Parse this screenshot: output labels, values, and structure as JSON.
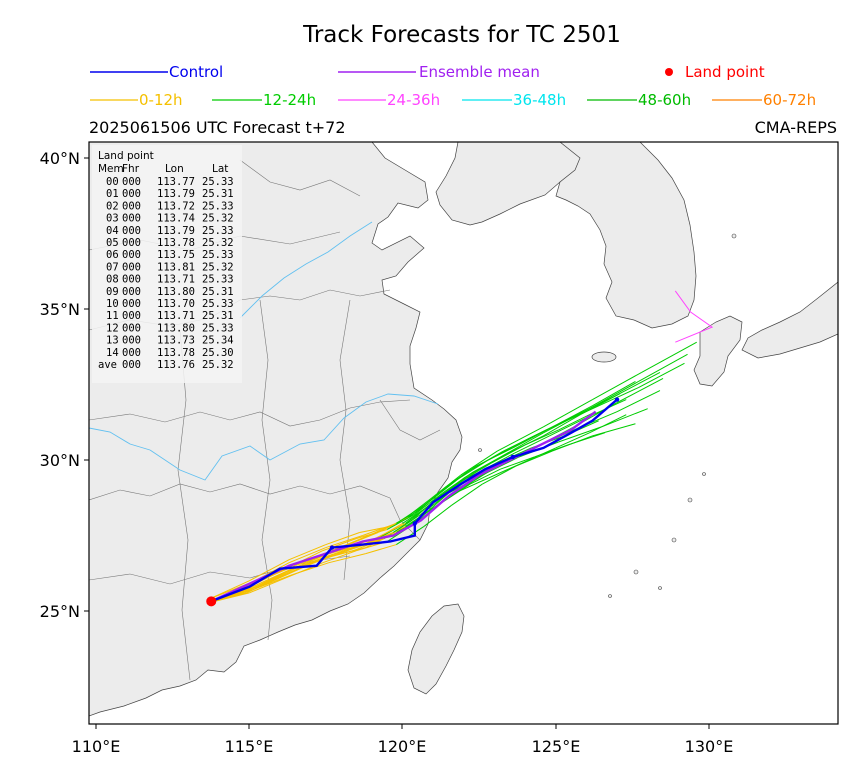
{
  "title": "Track Forecasts for TC 2501",
  "subtitle_left": "2025061506 UTC Forecast t+72",
  "subtitle_right": "CMA-REPS",
  "legend_row1": [
    {
      "label": "Control",
      "color": "#0000ee",
      "kind": "line"
    },
    {
      "label": "Ensemble mean",
      "color": "#a020f0",
      "kind": "line"
    },
    {
      "label": "Land point",
      "color": "#ff0000",
      "kind": "dot"
    }
  ],
  "legend_row2": [
    {
      "label": "0-12h",
      "color": "#f5c000"
    },
    {
      "label": "12-24h",
      "color": "#00cc00"
    },
    {
      "label": "24-36h",
      "color": "#ff44ff"
    },
    {
      "label": "36-48h",
      "color": "#00e5ee"
    },
    {
      "label": "48-60h",
      "color": "#00bb00"
    },
    {
      "label": "60-72h",
      "color": "#ff8000"
    }
  ],
  "x_ticks": [
    "110°E",
    "115°E",
    "120°E",
    "125°E",
    "130°E"
  ],
  "y_ticks": [
    "40°N",
    "35°N",
    "30°N",
    "25°N"
  ],
  "land_table": {
    "title": "Land point",
    "headers": [
      "Mem",
      "Fhr",
      "Lon",
      "Lat"
    ],
    "rows": [
      [
        "00",
        "000",
        "113.77",
        "25.33"
      ],
      [
        "01",
        "000",
        "113.79",
        "25.31"
      ],
      [
        "02",
        "000",
        "113.72",
        "25.33"
      ],
      [
        "03",
        "000",
        "113.74",
        "25.32"
      ],
      [
        "04",
        "000",
        "113.79",
        "25.33"
      ],
      [
        "05",
        "000",
        "113.78",
        "25.32"
      ],
      [
        "06",
        "000",
        "113.75",
        "25.33"
      ],
      [
        "07",
        "000",
        "113.81",
        "25.32"
      ],
      [
        "08",
        "000",
        "113.71",
        "25.33"
      ],
      [
        "09",
        "000",
        "113.80",
        "25.31"
      ],
      [
        "10",
        "000",
        "113.70",
        "25.33"
      ],
      [
        "11",
        "000",
        "113.71",
        "25.31"
      ],
      [
        "12",
        "000",
        "113.80",
        "25.33"
      ],
      [
        "13",
        "000",
        "113.73",
        "25.34"
      ],
      [
        "14",
        "000",
        "113.78",
        "25.30"
      ],
      [
        "ave",
        "000",
        "113.76",
        "25.32"
      ]
    ]
  },
  "chart_data": {
    "type": "map-tracks",
    "xlim": [
      109.9,
      134.3
    ],
    "ylim": [
      21.3,
      40.5
    ],
    "land_point": {
      "lon": 113.76,
      "lat": 25.32
    },
    "control_track": [
      [
        113.76,
        25.32
      ],
      [
        115.0,
        25.8
      ],
      [
        116.0,
        26.4
      ],
      [
        117.2,
        26.5
      ],
      [
        117.7,
        27.1
      ],
      [
        118.7,
        27.2
      ],
      [
        119.6,
        27.3
      ],
      [
        120.4,
        27.5
      ],
      [
        120.4,
        27.9
      ],
      [
        121.0,
        28.6
      ],
      [
        121.9,
        29.2
      ],
      [
        122.7,
        29.7
      ],
      [
        123.6,
        30.1
      ],
      [
        124.6,
        30.4
      ],
      [
        125.5,
        30.9
      ],
      [
        126.2,
        31.3
      ],
      [
        127.0,
        32.0
      ]
    ],
    "mean_track": [
      [
        113.76,
        25.32
      ],
      [
        115.0,
        25.9
      ],
      [
        116.3,
        26.5
      ],
      [
        117.5,
        26.9
      ],
      [
        118.7,
        27.3
      ],
      [
        119.7,
        27.5
      ],
      [
        120.6,
        28.0
      ],
      [
        121.5,
        28.8
      ],
      [
        122.5,
        29.5
      ],
      [
        123.5,
        30.0
      ],
      [
        124.5,
        30.5
      ],
      [
        125.5,
        31.0
      ],
      [
        126.3,
        31.6
      ]
    ],
    "members": [
      [
        [
          113.8,
          25.3
        ],
        [
          115.1,
          25.7
        ],
        [
          116.4,
          26.3
        ],
        [
          117.6,
          26.8
        ],
        [
          118.8,
          27.1
        ],
        [
          119.8,
          27.6
        ],
        [
          120.7,
          28.2
        ],
        [
          121.7,
          28.9
        ],
        [
          122.8,
          29.4
        ],
        [
          123.9,
          29.9
        ],
        [
          125.0,
          30.4
        ],
        [
          126.1,
          30.9
        ],
        [
          127.3,
          31.5
        ]
      ],
      [
        [
          113.7,
          25.4
        ],
        [
          115.0,
          26.0
        ],
        [
          116.3,
          26.7
        ],
        [
          117.5,
          27.2
        ],
        [
          118.6,
          27.6
        ],
        [
          119.6,
          27.8
        ],
        [
          120.5,
          28.3
        ],
        [
          121.4,
          29.1
        ],
        [
          122.4,
          29.8
        ],
        [
          123.6,
          30.4
        ],
        [
          124.9,
          31.1
        ],
        [
          126.2,
          31.8
        ],
        [
          127.6,
          32.6
        ]
      ],
      [
        [
          113.8,
          25.3
        ],
        [
          115.2,
          25.8
        ],
        [
          116.5,
          26.4
        ],
        [
          117.8,
          26.9
        ],
        [
          119.0,
          27.3
        ],
        [
          120.0,
          27.9
        ],
        [
          120.9,
          28.5
        ],
        [
          121.9,
          29.2
        ],
        [
          123.0,
          29.8
        ],
        [
          124.3,
          30.4
        ],
        [
          125.6,
          31.1
        ],
        [
          127.0,
          31.9
        ],
        [
          128.5,
          32.7
        ]
      ],
      [
        [
          113.8,
          25.3
        ],
        [
          115.0,
          25.6
        ],
        [
          116.2,
          26.1
        ],
        [
          117.4,
          26.6
        ],
        [
          118.5,
          27.0
        ],
        [
          119.5,
          27.3
        ],
        [
          120.4,
          27.9
        ],
        [
          121.3,
          28.6
        ],
        [
          122.2,
          29.2
        ],
        [
          123.2,
          29.7
        ],
        [
          124.3,
          30.1
        ],
        [
          125.4,
          30.5
        ],
        [
          126.6,
          30.9
        ]
      ],
      [
        [
          113.7,
          25.3
        ],
        [
          115.1,
          25.9
        ],
        [
          116.4,
          26.5
        ],
        [
          117.7,
          27.0
        ],
        [
          118.9,
          27.5
        ],
        [
          120.0,
          28.0
        ],
        [
          120.9,
          28.7
        ],
        [
          121.9,
          29.5
        ],
        [
          123.1,
          30.3
        ],
        [
          124.6,
          31.1
        ],
        [
          126.2,
          32.0
        ],
        [
          127.8,
          32.9
        ],
        [
          129.6,
          33.9
        ]
      ],
      [
        [
          113.8,
          25.3
        ],
        [
          115.0,
          25.7
        ],
        [
          116.2,
          26.2
        ],
        [
          117.3,
          26.7
        ],
        [
          118.4,
          27.0
        ],
        [
          119.4,
          27.4
        ],
        [
          120.3,
          28.0
        ],
        [
          121.2,
          28.8
        ],
        [
          122.1,
          29.4
        ],
        [
          123.1,
          29.9
        ],
        [
          124.2,
          30.4
        ],
        [
          125.3,
          30.8
        ],
        [
          126.4,
          31.3
        ]
      ],
      [
        [
          113.7,
          25.4
        ],
        [
          115.2,
          26.0
        ],
        [
          116.6,
          26.6
        ],
        [
          118.0,
          27.1
        ],
        [
          119.2,
          27.6
        ],
        [
          120.2,
          28.1
        ],
        [
          121.1,
          28.8
        ],
        [
          122.1,
          29.6
        ],
        [
          123.3,
          30.3
        ],
        [
          124.7,
          31.0
        ],
        [
          126.2,
          31.7
        ],
        [
          127.7,
          32.4
        ],
        [
          129.2,
          33.2
        ]
      ],
      [
        [
          113.8,
          25.3
        ],
        [
          115.1,
          25.8
        ],
        [
          116.4,
          26.4
        ],
        [
          117.6,
          26.9
        ],
        [
          118.7,
          27.2
        ],
        [
          119.7,
          27.5
        ],
        [
          120.6,
          28.1
        ],
        [
          121.5,
          28.9
        ],
        [
          122.5,
          29.6
        ],
        [
          123.6,
          30.2
        ],
        [
          124.8,
          30.8
        ],
        [
          126.0,
          31.4
        ],
        [
          127.3,
          32.0
        ]
      ],
      [
        [
          113.7,
          25.3
        ],
        [
          114.9,
          25.6
        ],
        [
          116.0,
          26.1
        ],
        [
          117.1,
          26.6
        ],
        [
          118.2,
          27.0
        ],
        [
          119.2,
          27.4
        ],
        [
          120.1,
          27.9
        ],
        [
          121.0,
          28.6
        ],
        [
          121.9,
          29.3
        ],
        [
          122.9,
          29.9
        ],
        [
          124.0,
          30.5
        ],
        [
          125.1,
          31.0
        ],
        [
          126.3,
          31.6
        ]
      ],
      [
        [
          113.8,
          25.3
        ],
        [
          115.2,
          25.8
        ],
        [
          116.6,
          26.4
        ],
        [
          117.9,
          26.9
        ],
        [
          119.1,
          27.3
        ],
        [
          120.1,
          27.8
        ],
        [
          121.0,
          28.4
        ],
        [
          122.0,
          29.1
        ],
        [
          123.1,
          29.8
        ],
        [
          124.3,
          30.4
        ],
        [
          125.6,
          31.0
        ],
        [
          127.0,
          31.6
        ],
        [
          128.4,
          32.3
        ]
      ],
      [
        [
          113.7,
          25.3
        ],
        [
          115.0,
          25.9
        ],
        [
          116.3,
          26.6
        ],
        [
          117.5,
          27.1
        ],
        [
          118.7,
          27.5
        ],
        [
          119.8,
          27.9
        ],
        [
          120.7,
          28.5
        ],
        [
          121.7,
          29.3
        ],
        [
          122.8,
          30.0
        ],
        [
          124.1,
          30.7
        ],
        [
          125.5,
          31.4
        ],
        [
          126.9,
          32.1
        ],
        [
          128.4,
          32.9
        ]
      ],
      [
        [
          113.7,
          25.3
        ],
        [
          115.1,
          25.7
        ],
        [
          116.4,
          26.2
        ],
        [
          117.6,
          26.6
        ],
        [
          118.8,
          26.9
        ],
        [
          119.8,
          27.2
        ],
        [
          120.7,
          27.8
        ],
        [
          121.6,
          28.5
        ],
        [
          122.6,
          29.2
        ],
        [
          123.7,
          29.8
        ],
        [
          124.9,
          30.3
        ],
        [
          126.2,
          30.8
        ],
        [
          127.6,
          31.2
        ]
      ],
      [
        [
          113.8,
          25.3
        ],
        [
          115.0,
          25.8
        ],
        [
          116.2,
          26.4
        ],
        [
          117.4,
          27.0
        ],
        [
          118.5,
          27.4
        ],
        [
          119.5,
          27.7
        ],
        [
          120.4,
          28.2
        ],
        [
          121.3,
          28.9
        ],
        [
          122.3,
          29.6
        ],
        [
          123.4,
          30.2
        ],
        [
          124.6,
          30.8
        ],
        [
          125.8,
          31.5
        ],
        [
          127.1,
          32.2
        ]
      ],
      [
        [
          113.7,
          25.3
        ],
        [
          115.1,
          25.9
        ],
        [
          116.5,
          26.5
        ],
        [
          117.9,
          27.0
        ],
        [
          119.1,
          27.4
        ],
        [
          120.1,
          27.9
        ],
        [
          121.0,
          28.6
        ],
        [
          122.0,
          29.4
        ],
        [
          123.2,
          30.1
        ],
        [
          124.6,
          30.9
        ],
        [
          126.1,
          31.7
        ],
        [
          127.7,
          32.6
        ],
        [
          129.3,
          33.5
        ]
      ],
      [
        [
          113.8,
          25.3
        ],
        [
          115.0,
          25.7
        ],
        [
          116.2,
          26.3
        ],
        [
          117.5,
          26.8
        ],
        [
          118.7,
          27.2
        ],
        [
          119.7,
          27.6
        ],
        [
          120.6,
          28.2
        ],
        [
          121.5,
          28.9
        ],
        [
          122.6,
          29.5
        ],
        [
          123.8,
          30.1
        ],
        [
          125.1,
          30.6
        ],
        [
          126.5,
          31.1
        ],
        [
          128.0,
          31.7
        ]
      ]
    ],
    "pink_track": [
      [
        128.9,
        35.6
      ],
      [
        129.4,
        34.9
      ],
      [
        130.1,
        34.4
      ],
      [
        128.9,
        33.9
      ]
    ]
  }
}
